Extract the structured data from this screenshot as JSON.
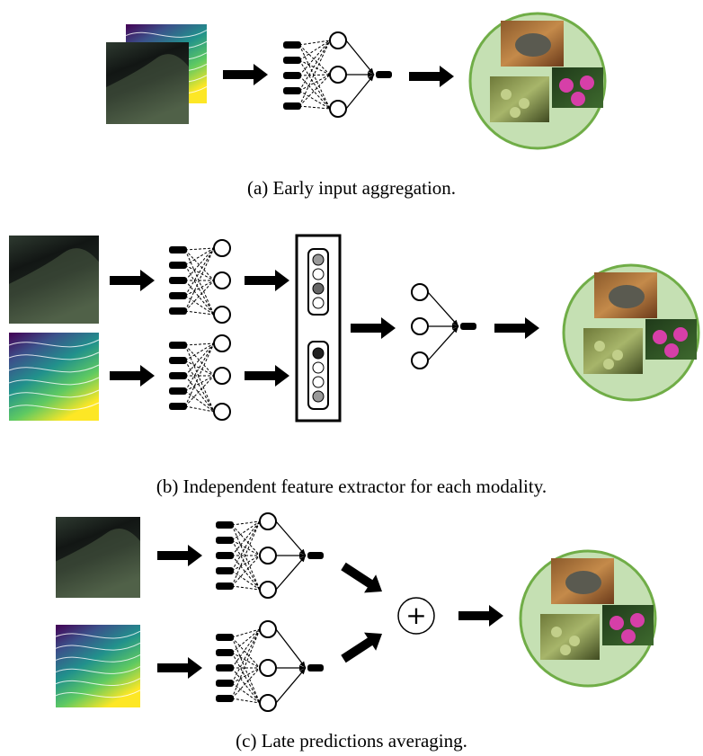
{
  "panels": [
    {
      "caption": "(a) Early input aggregation."
    },
    {
      "caption": "(b) Independent feature extractor for each modality."
    },
    {
      "caption": "(c) Late predictions averaging."
    }
  ],
  "operator": "+"
}
